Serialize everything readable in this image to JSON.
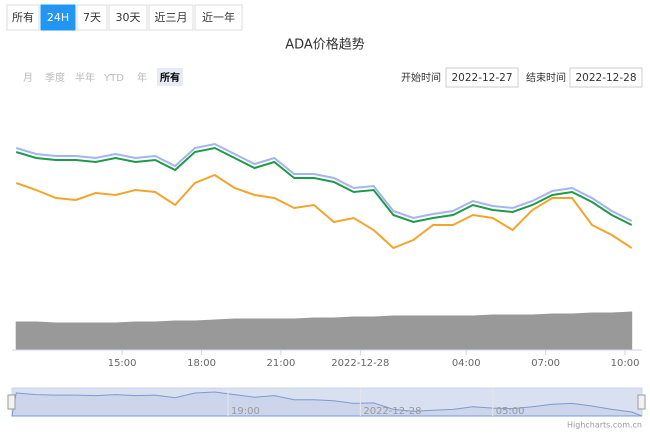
{
  "tabs": {
    "items": [
      "所有",
      "24H",
      "7天",
      "30天",
      "近三月",
      "近一年"
    ],
    "active": 1
  },
  "chart_data": {
    "type": "line",
    "title": "ADA价格趋势",
    "range_selector": {
      "buttons": [
        "月",
        "季度",
        "半年",
        "YTD",
        "年",
        "所有"
      ],
      "active": 5,
      "start_label": "开始时间",
      "start": "2022-12-27",
      "end_label": "结束时间",
      "end": "2022-12-28"
    },
    "x": [
      11,
      11.75,
      12.5,
      13.25,
      14,
      14.75,
      15.5,
      16.25,
      17,
      17.75,
      18.5,
      19.25,
      20,
      20.75,
      21.5,
      22.25,
      23,
      23.75,
      24.5,
      25.25,
      26,
      26.75,
      27.5,
      28.25,
      29,
      29.75,
      30.5,
      31.25,
      32,
      32.75,
      33.5,
      34.25
    ],
    "xlim": [
      10.84,
      34.64
    ],
    "xticks": [
      {
        "value": 15,
        "label": "15:00"
      },
      {
        "value": 18,
        "label": "18:00"
      },
      {
        "value": 21,
        "label": "21:00"
      },
      {
        "value": 24,
        "label": "2022-12-28"
      },
      {
        "value": 28,
        "label": "04:00"
      },
      {
        "value": 31,
        "label": "07:00"
      },
      {
        "value": 34,
        "label": "10:00"
      }
    ],
    "ylim": [
      0,
      250
    ],
    "series": [
      {
        "type": "area",
        "color": "#999999",
        "values": [
          28,
          28,
          27,
          27,
          27,
          27,
          28,
          28,
          29,
          29,
          30,
          31,
          31,
          31,
          31,
          32,
          32,
          33,
          33,
          34,
          34,
          34,
          34,
          34,
          35,
          35,
          35,
          36,
          36,
          37,
          37,
          38
        ]
      },
      {
        "type": "line",
        "color": "#a6b4ee",
        "values": [
          202,
          196,
          194,
          194,
          192,
          196,
          192,
          194,
          184,
          202,
          206,
          196,
          186,
          192,
          176,
          176,
          172,
          162,
          164,
          139,
          132,
          136,
          139,
          149,
          144,
          142,
          149,
          159,
          162,
          152,
          139,
          129
        ]
      },
      {
        "type": "line",
        "color": "#1e9a4b",
        "values": [
          198,
          192,
          190,
          190,
          188,
          192,
          188,
          190,
          180,
          198,
          202,
          192,
          182,
          188,
          172,
          172,
          168,
          158,
          160,
          135,
          128,
          132,
          135,
          145,
          140,
          138,
          145,
          155,
          158,
          148,
          135,
          125
        ]
      },
      {
        "type": "line",
        "color": "#f2a52c",
        "values": [
          167,
          160,
          152,
          150,
          157,
          155,
          160,
          158,
          145,
          167,
          175,
          162,
          155,
          152,
          142,
          145,
          128,
          132,
          120,
          102,
          110,
          125,
          125,
          135,
          132,
          120,
          140,
          152,
          152,
          125,
          115,
          102
        ]
      }
    ],
    "navigator": {
      "xticks": [
        {
          "value": 19,
          "label": "19:00"
        },
        {
          "value": 24,
          "label": "2022-12-28"
        },
        {
          "value": 29,
          "label": "05:00"
        }
      ]
    },
    "credits": "Highcharts.com.cn"
  }
}
